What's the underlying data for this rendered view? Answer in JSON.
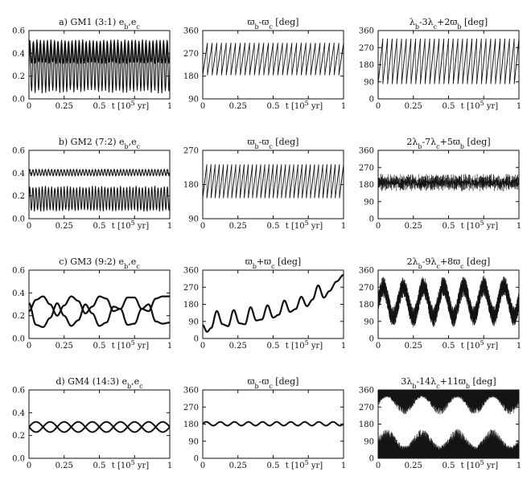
{
  "figure": {
    "rows": [
      {
        "label": "a) GM1 (3:1)"
      },
      {
        "label": "b) GM2 (7:2)"
      },
      {
        "label": "c) GM3 (9:2)"
      },
      {
        "label": "d) GM4 (14:3)"
      }
    ]
  },
  "chart_data": [
    {
      "type": "line",
      "row": 0,
      "col": 0,
      "title": "a) GM1 (3:1) e_b,e_c",
      "xlabel": "t [10^5 yr]",
      "xlim": [
        0,
        1
      ],
      "ylim": [
        0,
        0.6
      ],
      "xticks": [
        "0",
        "0.25",
        "0.5",
        "0.75",
        "1"
      ],
      "yticks": [
        "0.0",
        "0.2",
        "0.4",
        "0.6"
      ],
      "series": [
        {
          "kind": "osc",
          "base": 0.415,
          "amp": 0.105,
          "cycles": 40,
          "style": "band"
        },
        {
          "kind": "osc",
          "base": 0.275,
          "amp": 0.225,
          "cycles": 40,
          "style": "band"
        }
      ]
    },
    {
      "type": "line",
      "row": 0,
      "col": 1,
      "title": "ϖ_b-ϖ_c [deg]",
      "xlabel": "t [10^5 yr]",
      "xlim": [
        0,
        1
      ],
      "ylim": [
        90,
        360
      ],
      "xticks": [
        "0",
        "0.25",
        "0.5",
        "0.75",
        "1"
      ],
      "yticks": [
        "90",
        "180",
        "270",
        "360"
      ],
      "series": [
        {
          "kind": "saw",
          "low": 185,
          "high": 310,
          "cycles": 30
        }
      ]
    },
    {
      "type": "line",
      "row": 0,
      "col": 2,
      "title": "λ_b-3λ_c+2ϖ_b [deg]",
      "xlabel": "t [10^5 yr]",
      "xlim": [
        0,
        1
      ],
      "ylim": [
        0,
        360
      ],
      "xticks": [
        "0",
        "0.25",
        "0.5",
        "0.75",
        "1"
      ],
      "yticks": [
        "0",
        "90",
        "180",
        "270",
        "360"
      ],
      "series": [
        {
          "kind": "saw",
          "low": 80,
          "high": 315,
          "cycles": 30
        }
      ]
    },
    {
      "type": "line",
      "row": 1,
      "col": 0,
      "title": "b) GM2 (7:2) e_b,e_c",
      "xlabel": "t [10^5 yr]",
      "xlim": [
        0,
        1
      ],
      "ylim": [
        0,
        0.6
      ],
      "xticks": [
        "0",
        "0.25",
        "0.5",
        "0.75",
        "1"
      ],
      "yticks": [
        "0.0",
        "0.2",
        "0.4",
        "0.6"
      ],
      "series": [
        {
          "kind": "osc",
          "base": 0.405,
          "amp": 0.03,
          "cycles": 45,
          "style": "band"
        },
        {
          "kind": "osc",
          "base": 0.175,
          "amp": 0.11,
          "cycles": 45,
          "style": "band"
        }
      ]
    },
    {
      "type": "line",
      "row": 1,
      "col": 1,
      "title": "ϖ_b-ϖ_c [deg]",
      "xlabel": "t [10^5 yr]",
      "xlim": [
        0,
        1
      ],
      "ylim": [
        90,
        270
      ],
      "xticks": [
        "0",
        "0.25",
        "0.5",
        "0.75",
        "1"
      ],
      "yticks": [
        "90",
        "180",
        "270"
      ],
      "series": [
        {
          "kind": "saw",
          "low": 145,
          "high": 232,
          "cycles": 34
        }
      ]
    },
    {
      "type": "line",
      "row": 1,
      "col": 2,
      "title": "2λ_b-7λ_c+5ϖ_b [deg]",
      "xlabel": "t [10^5 yr]",
      "xlim": [
        0,
        1
      ],
      "ylim": [
        0,
        360
      ],
      "xticks": [
        "0",
        "0.25",
        "0.5",
        "0.75",
        "1"
      ],
      "yticks": [
        "0",
        "90",
        "180",
        "270",
        "360"
      ],
      "series": [
        {
          "kind": "noise",
          "base": 190,
          "amp": 45,
          "cycles": 120
        }
      ]
    },
    {
      "type": "line",
      "row": 2,
      "col": 0,
      "title": "c) GM3 (9:2) e_b,e_c",
      "xlabel": "t [10^5 yr]",
      "xlim": [
        0,
        1
      ],
      "ylim": [
        0,
        0.6
      ],
      "xticks": [
        "0",
        "0.25",
        "0.5",
        "0.75",
        "1"
      ],
      "yticks": [
        "0.0",
        "0.2",
        "0.4",
        "0.6"
      ],
      "series": [
        {
          "kind": "wave",
          "points": [
            [
              0,
              0.31
            ],
            [
              0.05,
              0.12
            ],
            [
              0.1,
              0.1
            ],
            [
              0.15,
              0.18
            ],
            [
              0.2,
              0.31
            ],
            [
              0.25,
              0.2
            ],
            [
              0.3,
              0.11
            ],
            [
              0.35,
              0.16
            ],
            [
              0.4,
              0.3
            ],
            [
              0.45,
              0.22
            ],
            [
              0.5,
              0.11
            ],
            [
              0.55,
              0.14
            ],
            [
              0.6,
              0.28
            ],
            [
              0.65,
              0.26
            ],
            [
              0.7,
              0.12
            ],
            [
              0.75,
              0.13
            ],
            [
              0.8,
              0.26
            ],
            [
              0.85,
              0.3
            ],
            [
              0.9,
              0.15
            ],
            [
              0.95,
              0.13
            ],
            [
              1,
              0.14
            ]
          ]
        },
        {
          "kind": "wave",
          "points": [
            [
              0,
              0.24
            ],
            [
              0.05,
              0.34
            ],
            [
              0.1,
              0.37
            ],
            [
              0.15,
              0.3
            ],
            [
              0.2,
              0.2
            ],
            [
              0.25,
              0.29
            ],
            [
              0.3,
              0.37
            ],
            [
              0.35,
              0.33
            ],
            [
              0.4,
              0.22
            ],
            [
              0.45,
              0.28
            ],
            [
              0.5,
              0.37
            ],
            [
              0.55,
              0.35
            ],
            [
              0.6,
              0.24
            ],
            [
              0.65,
              0.26
            ],
            [
              0.7,
              0.36
            ],
            [
              0.75,
              0.36
            ],
            [
              0.8,
              0.26
            ],
            [
              0.85,
              0.24
            ],
            [
              0.9,
              0.35
            ],
            [
              0.95,
              0.37
            ],
            [
              1,
              0.37
            ]
          ]
        }
      ]
    },
    {
      "type": "line",
      "row": 2,
      "col": 1,
      "title": "ϖ_b+ϖ_c [deg]",
      "xlabel": "t [10^5 yr]",
      "xlim": [
        0,
        1
      ],
      "ylim": [
        0,
        360
      ],
      "xticks": [
        "0",
        "0.25",
        "0.5",
        "0.75",
        "1"
      ],
      "yticks": [
        "0",
        "90",
        "180",
        "270",
        "360"
      ],
      "series": [
        {
          "kind": "wave",
          "points": [
            [
              0,
              70
            ],
            [
              0.03,
              35
            ],
            [
              0.06,
              55
            ],
            [
              0.1,
              145
            ],
            [
              0.14,
              75
            ],
            [
              0.18,
              65
            ],
            [
              0.22,
              150
            ],
            [
              0.26,
              80
            ],
            [
              0.3,
              75
            ],
            [
              0.34,
              165
            ],
            [
              0.38,
              95
            ],
            [
              0.42,
              100
            ],
            [
              0.46,
              175
            ],
            [
              0.5,
              110
            ],
            [
              0.54,
              125
            ],
            [
              0.58,
              200
            ],
            [
              0.62,
              140
            ],
            [
              0.66,
              155
            ],
            [
              0.7,
              220
            ],
            [
              0.74,
              170
            ],
            [
              0.78,
              205
            ],
            [
              0.82,
              280
            ],
            [
              0.86,
              215
            ],
            [
              0.9,
              250
            ],
            [
              0.95,
              300
            ],
            [
              1,
              335
            ]
          ]
        }
      ]
    },
    {
      "type": "line",
      "row": 2,
      "col": 2,
      "title": "2λ_b-9λ_c+8ϖ_c [deg]",
      "xlabel": "t [10^5 yr]",
      "xlim": [
        0,
        1
      ],
      "ylim": [
        0,
        360
      ],
      "xticks": [
        "0",
        "0.25",
        "0.5",
        "0.75",
        "1"
      ],
      "yticks": [
        "0",
        "90",
        "180",
        "270",
        "360"
      ],
      "series": [
        {
          "kind": "fan",
          "base": 190,
          "amp": 80,
          "width": 55,
          "cycles": 7,
          "drift": 10
        }
      ]
    },
    {
      "type": "line",
      "row": 3,
      "col": 0,
      "title": "d) GM4 (14:3) e_b,e_c",
      "xlabel": "t [10^5 yr]",
      "xlim": [
        0,
        1
      ],
      "ylim": [
        0,
        0.6
      ],
      "xticks": [
        "0",
        "0.25",
        "0.5",
        "0.75",
        "1"
      ],
      "yticks": [
        "0.0",
        "0.2",
        "0.4",
        "0.6"
      ],
      "series": [
        {
          "kind": "sine",
          "base": 0.275,
          "amp": 0.045,
          "cycles": 5,
          "phase": 0
        },
        {
          "kind": "sine",
          "base": 0.275,
          "amp": 0.045,
          "cycles": 5,
          "phase": 3.14159
        }
      ]
    },
    {
      "type": "line",
      "row": 3,
      "col": 1,
      "title": "ϖ_b-ϖ_c [deg]",
      "xlabel": "t [10^5 yr]",
      "xlim": [
        0,
        1
      ],
      "ylim": [
        0,
        360
      ],
      "xticks": [
        "0",
        "0.25",
        "0.5",
        "0.75",
        "1"
      ],
      "yticks": [
        "0",
        "90",
        "180",
        "270",
        "360"
      ],
      "series": [
        {
          "kind": "sine",
          "base": 182,
          "amp": 10,
          "cycles": 10,
          "phase": 0
        }
      ]
    },
    {
      "type": "line",
      "row": 3,
      "col": 2,
      "title": "3λ_b-14λ_c+11ϖ_b [deg]",
      "xlabel": "t [10^5 yr]",
      "xlim": [
        0,
        1
      ],
      "ylim": [
        0,
        360
      ],
      "xticks": [
        "0",
        "0.25",
        "0.5",
        "0.75",
        "1"
      ],
      "yticks": [
        "0",
        "90",
        "180",
        "270",
        "360"
      ],
      "series": [
        {
          "kind": "fanupper",
          "top": 360,
          "base": 275,
          "amp": 45,
          "cycles": 4
        },
        {
          "kind": "fanlower",
          "bottom": 0,
          "base": 110,
          "amp": 45,
          "cycles": 4
        }
      ]
    }
  ]
}
